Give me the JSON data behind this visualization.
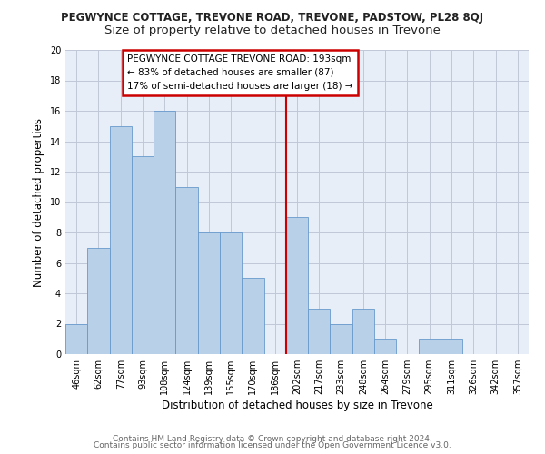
{
  "title": "PEGWYNCE COTTAGE, TREVONE ROAD, TREVONE, PADSTOW, PL28 8QJ",
  "subtitle": "Size of property relative to detached houses in Trevone",
  "xlabel": "Distribution of detached houses by size in Trevone",
  "ylabel": "Number of detached properties",
  "bar_labels": [
    "46sqm",
    "62sqm",
    "77sqm",
    "93sqm",
    "108sqm",
    "124sqm",
    "139sqm",
    "155sqm",
    "170sqm",
    "186sqm",
    "202sqm",
    "217sqm",
    "233sqm",
    "248sqm",
    "264sqm",
    "279sqm",
    "295sqm",
    "311sqm",
    "326sqm",
    "342sqm",
    "357sqm"
  ],
  "bar_heights": [
    2,
    7,
    15,
    13,
    16,
    11,
    8,
    8,
    5,
    0,
    9,
    3,
    2,
    3,
    1,
    0,
    1,
    1,
    0,
    0,
    0
  ],
  "bar_color": "#b8d0e8",
  "bar_edge_color": "#6699cc",
  "plot_bg_color": "#e8eef8",
  "grid_color": "#c0c8d8",
  "vline_x": 9.5,
  "vline_color": "#cc0000",
  "annotation_title": "PEGWYNCE COTTAGE TREVONE ROAD: 193sqm",
  "annotation_line1": "← 83% of detached houses are smaller (87)",
  "annotation_line2": "17% of semi-detached houses are larger (18) →",
  "annotation_box_color": "#ffffff",
  "annotation_box_edge": "#cc0000",
  "ylim": [
    0,
    20
  ],
  "yticks": [
    0,
    2,
    4,
    6,
    8,
    10,
    12,
    14,
    16,
    18,
    20
  ],
  "footer1": "Contains HM Land Registry data © Crown copyright and database right 2024.",
  "footer2": "Contains public sector information licensed under the Open Government Licence v3.0.",
  "title_fontsize": 8.5,
  "subtitle_fontsize": 9.5,
  "axis_label_fontsize": 8.5,
  "tick_fontsize": 7,
  "annotation_fontsize": 7.5,
  "footer_fontsize": 6.5
}
